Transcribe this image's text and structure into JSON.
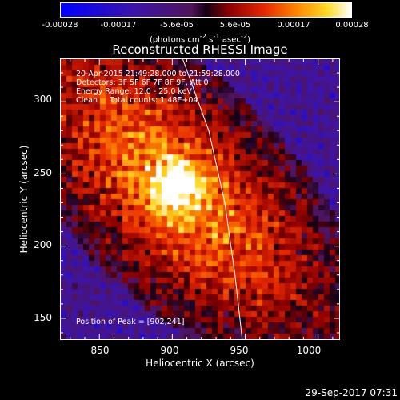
{
  "colorbar": {
    "ticks": [
      "-0.00028",
      "-0.00017",
      "-5.6e-05",
      "5.6e-05",
      "0.00017",
      "0.00028"
    ],
    "units_html": "(photons cm<sup>-2</sup> s<sup>-1</sup> asec<sup>-2</sup>)"
  },
  "chart_data": {
    "type": "heatmap",
    "title": "Reconstructed RHESSI Image",
    "xlabel": "Heliocentric X (arcsec)",
    "ylabel": "Heliocentric Y (arcsec)",
    "xlim": [
      823,
      1015
    ],
    "ylim": [
      135,
      330
    ],
    "xticks": [
      "850",
      "900",
      "950",
      "1000"
    ],
    "yticks": [
      "150",
      "200",
      "250",
      "300"
    ],
    "xtick_values": [
      850,
      900,
      950,
      1000
    ],
    "ytick_values": [
      150,
      200,
      250,
      300
    ],
    "color_range": [
      -0.00028,
      0.00028
    ],
    "peak_position": [
      902,
      241
    ],
    "limb_curve": [
      [
        907,
        330
      ],
      [
        925,
        280
      ],
      [
        936,
        230
      ],
      [
        943,
        180
      ],
      [
        948,
        135
      ]
    ]
  },
  "info_lines": [
    "20-Apr-2015 21:49:28.000 to 21:59:28.000",
    "Detectors: 3F 5F 6F 7F 8F 9F, Att 0",
    "Energy Range: 12.0 - 25.0 keV",
    "Clean     Total counts: 1.48E+04"
  ],
  "peak_text": "Position of Peak = [902,241]",
  "timestamp": "29-Sep-2017 07:31"
}
